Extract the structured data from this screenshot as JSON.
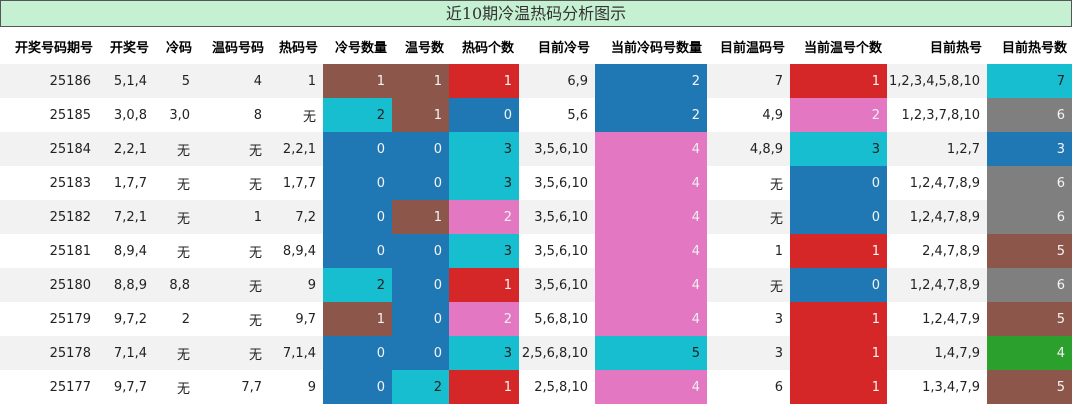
{
  "title": "近10期冷温热码分析图示",
  "colors": {
    "blue": "#1f77b4",
    "brown": "#8c564b",
    "red": "#d62728",
    "cyan": "#17becf",
    "pink": "#e377c2",
    "gray": "#7f7f7f",
    "green": "#2ca02c"
  },
  "chart_data": {
    "type": "table",
    "title": "近10期冷温热码分析图示",
    "columns": [
      "开奖号码期号",
      "开奖号",
      "冷码",
      "温码号码",
      "热码号",
      "冷号数量",
      "温号数",
      "热码个数",
      "目前冷号",
      "当前冷码号数量",
      "目前温码号",
      "当前温号个数",
      "目前热号",
      "目前热号数"
    ],
    "rows": [
      [
        "25186",
        "5,1,4",
        "5",
        "4",
        "1",
        "1",
        "1",
        "1",
        "6,9",
        "2",
        "7",
        "1",
        "1,2,3,4,5,8,10",
        "7"
      ],
      [
        "25185",
        "3,0,8",
        "3,0",
        "8",
        "无",
        "2",
        "1",
        "0",
        "5,6",
        "2",
        "4,9",
        "2",
        "1,2,3,7,8,10",
        "6"
      ],
      [
        "25184",
        "2,2,1",
        "无",
        "无",
        "2,2,1",
        "0",
        "0",
        "3",
        "3,5,6,10",
        "4",
        "4,8,9",
        "3",
        "1,2,7",
        "3"
      ],
      [
        "25183",
        "1,7,7",
        "无",
        "无",
        "1,7,7",
        "0",
        "0",
        "3",
        "3,5,6,10",
        "4",
        "无",
        "0",
        "1,2,4,7,8,9",
        "6"
      ],
      [
        "25182",
        "7,2,1",
        "无",
        "1",
        "7,2",
        "0",
        "1",
        "2",
        "3,5,6,10",
        "4",
        "无",
        "0",
        "1,2,4,7,8,9",
        "6"
      ],
      [
        "25181",
        "8,9,4",
        "无",
        "无",
        "8,9,4",
        "0",
        "0",
        "3",
        "3,5,6,10",
        "4",
        "1",
        "1",
        "2,4,7,8,9",
        "5"
      ],
      [
        "25180",
        "8,8,9",
        "8,8",
        "无",
        "9",
        "2",
        "0",
        "1",
        "3,5,6,10",
        "4",
        "无",
        "0",
        "1,2,4,7,8,9",
        "6"
      ],
      [
        "25179",
        "9,7,2",
        "2",
        "无",
        "9,7",
        "1",
        "0",
        "2",
        "5,6,8,10",
        "4",
        "3",
        "1",
        "1,2,4,7,9",
        "5"
      ],
      [
        "25178",
        "7,1,4",
        "无",
        "无",
        "7,1,4",
        "0",
        "0",
        "3",
        "2,5,6,8,10",
        "5",
        "3",
        "1",
        "1,4,7,9",
        "4"
      ],
      [
        "25177",
        "9,7,7",
        "无",
        "7,7",
        "9",
        "0",
        "2",
        "1",
        "2,5,8,10",
        "4",
        "6",
        "1",
        "1,3,4,7,9",
        "5"
      ]
    ],
    "count_columns": [
      5,
      6,
      7,
      9,
      11,
      13
    ],
    "count_color_map": {
      "0": "blue",
      "1": "brown",
      "2": "cyan",
      "3": "cyan",
      "4": "pink",
      "5": "brown",
      "6": "gray",
      "7": "cyan"
    },
    "cell_colors": [
      [
        null,
        null,
        null,
        null,
        null,
        "brown",
        "brown",
        "red",
        null,
        "blue",
        null,
        "red",
        null,
        "cyan"
      ],
      [
        null,
        null,
        null,
        null,
        null,
        "cyan",
        "brown",
        "blue",
        null,
        "blue",
        null,
        "pink",
        null,
        "gray"
      ],
      [
        null,
        null,
        null,
        null,
        null,
        "blue",
        "blue",
        "cyan",
        null,
        "pink",
        null,
        "cyan",
        null,
        "blue"
      ],
      [
        null,
        null,
        null,
        null,
        null,
        "blue",
        "blue",
        "cyan",
        null,
        "pink",
        null,
        "blue",
        null,
        "gray"
      ],
      [
        null,
        null,
        null,
        null,
        null,
        "blue",
        "brown",
        "pink",
        null,
        "pink",
        null,
        "blue",
        null,
        "gray"
      ],
      [
        null,
        null,
        null,
        null,
        null,
        "blue",
        "blue",
        "cyan",
        null,
        "pink",
        null,
        "red",
        null,
        "brown"
      ],
      [
        null,
        null,
        null,
        null,
        null,
        "cyan",
        "blue",
        "red",
        null,
        "pink",
        null,
        "blue",
        null,
        "gray"
      ],
      [
        null,
        null,
        null,
        null,
        null,
        "brown",
        "blue",
        "pink",
        null,
        "pink",
        null,
        "red",
        null,
        "brown"
      ],
      [
        null,
        null,
        null,
        null,
        null,
        "blue",
        "blue",
        "cyan",
        null,
        "cyan",
        null,
        "red",
        null,
        "green"
      ],
      [
        null,
        null,
        null,
        null,
        null,
        "blue",
        "cyan",
        "red",
        null,
        "pink",
        null,
        "red",
        null,
        "brown"
      ]
    ]
  }
}
